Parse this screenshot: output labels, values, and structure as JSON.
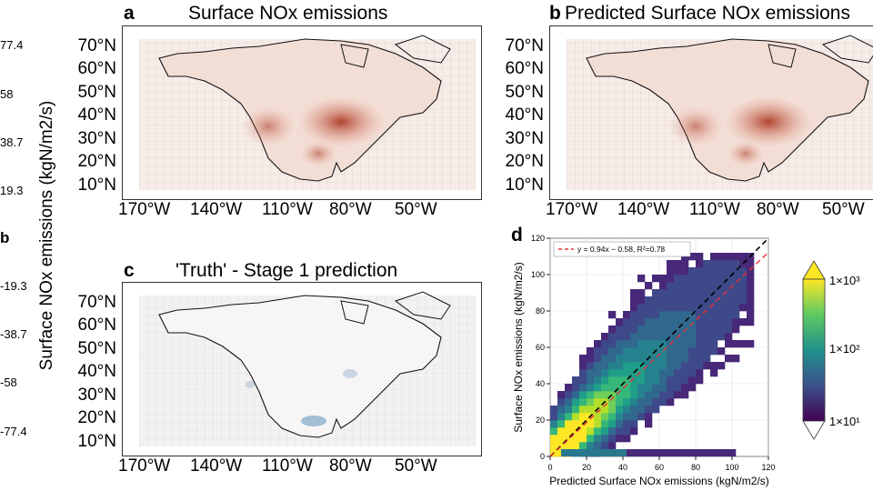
{
  "left_colorbar": {
    "label": "Surface NOx emissions (kgN/m2/s)",
    "ticks_top": [
      "77.4",
      "58",
      "38.7",
      "19.3"
    ],
    "ticks_bottom": [
      "-19.3",
      "-38.7",
      "-58",
      "-77.4"
    ],
    "partial_letter": "b"
  },
  "panel_a": {
    "letter": "a",
    "title": "Surface NOx emissions"
  },
  "panel_b": {
    "letter": "b",
    "title": "Predicted Surface NOx emissions"
  },
  "panel_c": {
    "letter": "c",
    "title": "'Truth' - Stage 1 prediction"
  },
  "map_axes": {
    "lat_labels": [
      "70°N",
      "60°N",
      "50°N",
      "40°N",
      "30°N",
      "20°N",
      "10°N"
    ],
    "lon_labels": [
      "170°W",
      "140°W",
      "110°W",
      "80°W",
      "50°W"
    ]
  },
  "panel_d": {
    "letter": "d"
  },
  "right_colorbar": {
    "ticks": [
      "1×10³",
      "1×10²",
      "1×10¹"
    ],
    "colors": [
      "#fde725",
      "#5ec962",
      "#21918c",
      "#3b528b",
      "#440154"
    ]
  },
  "chart_data": {
    "type": "heatmap",
    "xlabel": "Predicted Surface NOx emissions (kgN/m2/s)",
    "ylabel": "Surface NOx emissions (kgN/m2/s)",
    "xlim": [
      0,
      120
    ],
    "ylim": [
      0,
      120
    ],
    "xticks": [
      0,
      20,
      40,
      60,
      80,
      100,
      120
    ],
    "yticks": [
      0,
      20,
      40,
      60,
      80,
      100,
      120
    ],
    "grid": true,
    "legend": {
      "placement": "top-left",
      "entry": "y = 0.94x − 0.58, R²=0.78"
    },
    "fit_line": {
      "slope": 0.94,
      "intercept": -0.58,
      "color": "#e8333a",
      "style": "dashed"
    },
    "identity_line": {
      "slope": 1,
      "intercept": 0,
      "color": "#000000",
      "style": "dashed"
    },
    "colorscale": "viridis (log counts)"
  }
}
